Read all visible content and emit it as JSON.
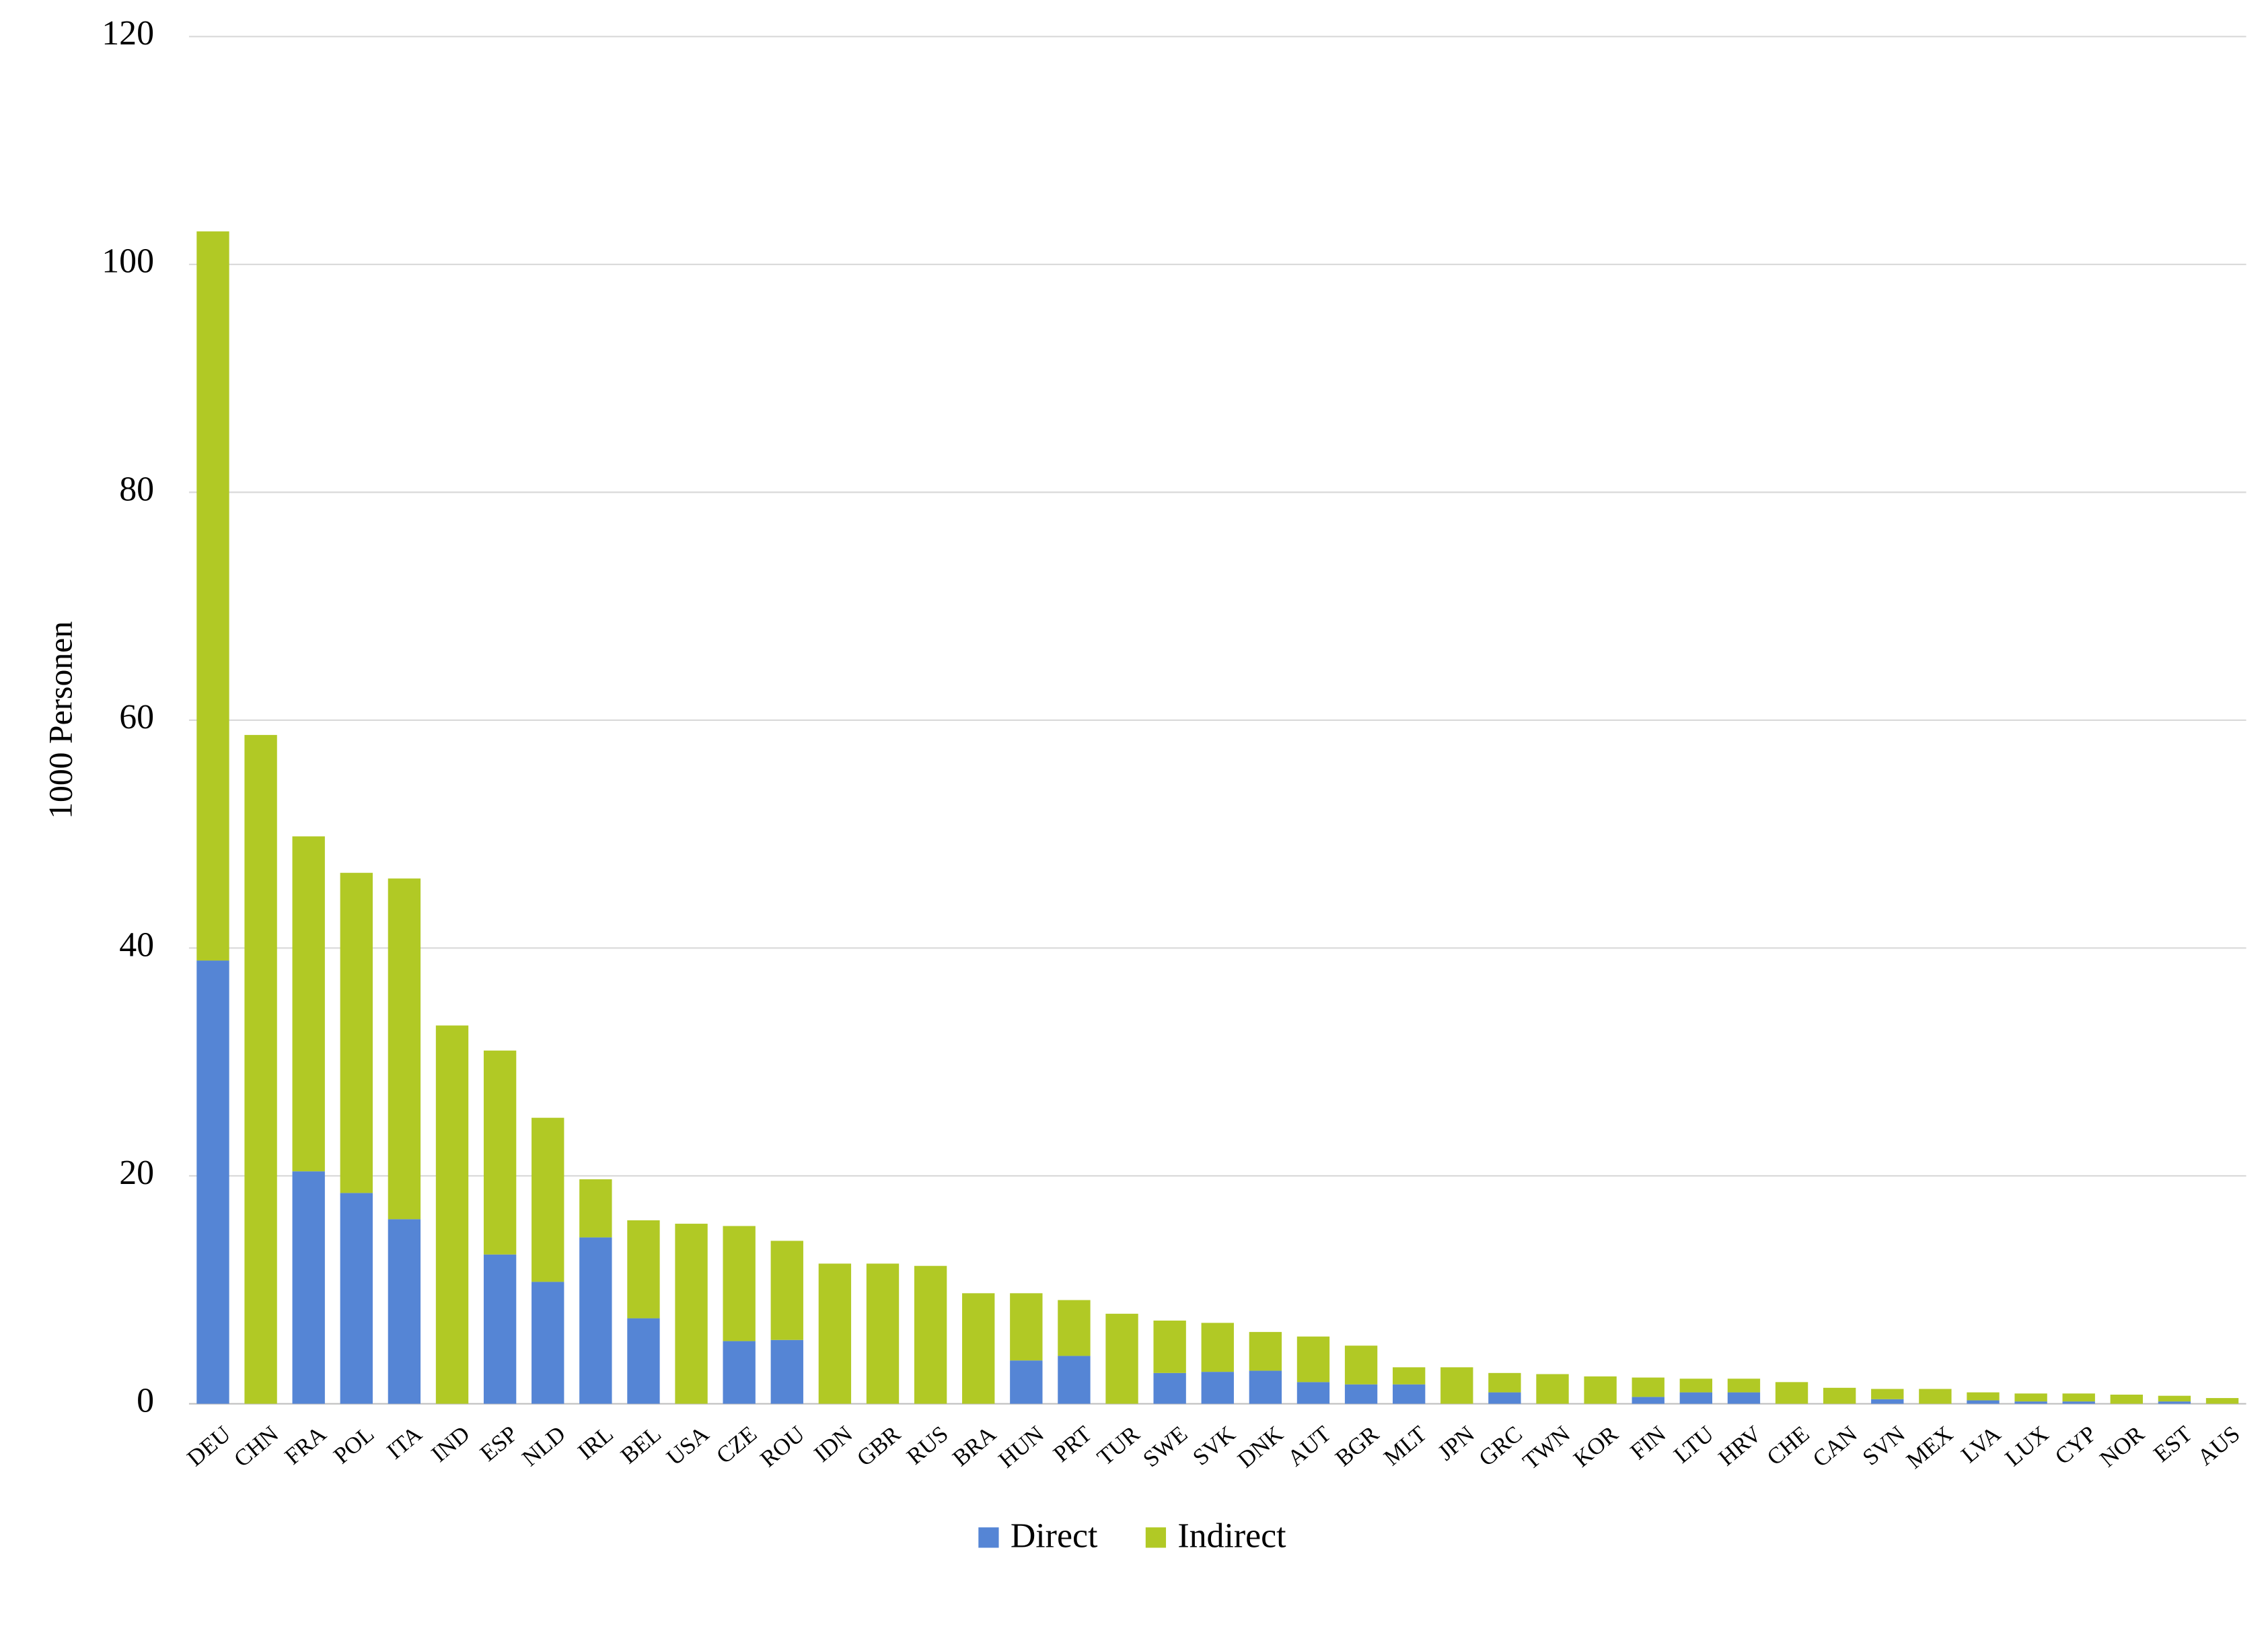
{
  "chart_data": {
    "type": "stacked_bar",
    "y_label": "1000 Personen",
    "categories": [
      "DEU",
      "CHN",
      "FRA",
      "POL",
      "ITA",
      "IND",
      "ESP",
      "NLD",
      "IRL",
      "BEL",
      "USA",
      "CZE",
      "ROU",
      "IDN",
      "GBR",
      "RUS",
      "BRA",
      "HUN",
      "PRT",
      "TUR",
      "SWE",
      "SVK",
      "DNK",
      "AUT",
      "BGR",
      "MLT",
      "JPN",
      "GRC",
      "TWN",
      "KOR",
      "FIN",
      "LTU",
      "HRV",
      "CHE",
      "CAN",
      "SVN",
      "MEX",
      "LVA",
      "LUX",
      "CYP",
      "NOR",
      "EST",
      "AUS"
    ],
    "series": [
      {
        "name": "Direct",
        "color": "#5585d5",
        "values": [
          38.9,
          0,
          20.4,
          18.5,
          16.2,
          0,
          13.1,
          10.7,
          14.6,
          7.5,
          0,
          5.5,
          5.6,
          0,
          0,
          0,
          0,
          3.8,
          4.2,
          0,
          2.7,
          2.8,
          2.9,
          1.9,
          1.7,
          1.7,
          0,
          1.0,
          0,
          0,
          0.6,
          1.0,
          1.0,
          0,
          0,
          0.4,
          0,
          0.3,
          0.2,
          0.2,
          0,
          0.2,
          0
        ]
      },
      {
        "name": "Indirect",
        "color": "#b1c925",
        "values": [
          64.0,
          58.7,
          29.4,
          28.1,
          29.9,
          33.2,
          17.9,
          14.4,
          5.1,
          8.6,
          15.8,
          10.1,
          8.7,
          12.3,
          12.3,
          12.1,
          9.7,
          5.9,
          4.9,
          7.9,
          4.6,
          4.3,
          3.4,
          4.0,
          3.4,
          1.5,
          3.2,
          1.7,
          2.6,
          2.4,
          1.7,
          1.2,
          1.2,
          1.9,
          1.4,
          0.9,
          1.3,
          0.7,
          0.7,
          0.7,
          0.8,
          0.5,
          0.5
        ]
      }
    ],
    "ylim": [
      0,
      120
    ],
    "yticks": [
      0,
      20,
      40,
      60,
      80,
      100,
      120
    ],
    "grid": true,
    "legend": "bottom"
  }
}
